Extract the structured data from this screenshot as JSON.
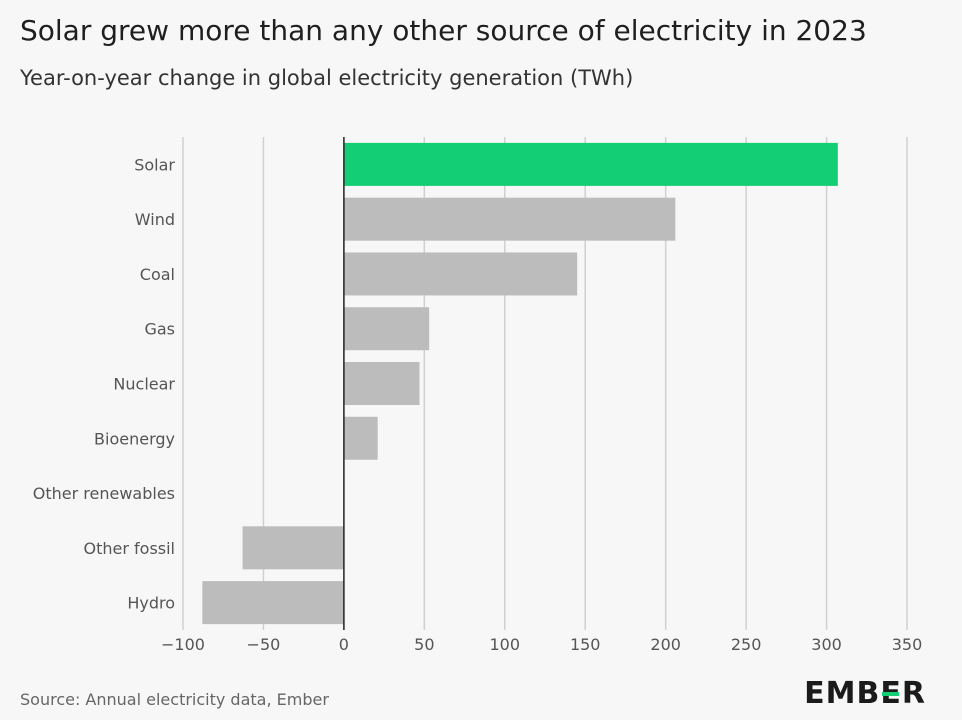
{
  "title": "Solar grew more than any other source of electricity in 2023",
  "subtitle": "Year-on-year change in global electricity generation (TWh)",
  "source": "Source: Annual electricity data, Ember",
  "logo": "EMBER",
  "colors": {
    "highlight": "#13ce74",
    "bar": "#bcbcbc",
    "grid": "#d0d0d0",
    "zero": "#222222",
    "background": "#f7f7f7"
  },
  "chart_data": {
    "type": "bar",
    "orientation": "horizontal",
    "title": "Solar grew more than any other source of electricity in 2023",
    "subtitle": "Year-on-year change in global electricity generation (TWh)",
    "categories": [
      "Solar",
      "Wind",
      "Coal",
      "Gas",
      "Nuclear",
      "Bioenergy",
      "Other renewables",
      "Other fossil",
      "Hydro"
    ],
    "values": [
      307,
      206,
      145,
      53,
      47,
      21,
      0,
      -63,
      -88
    ],
    "highlight": [
      "Solar"
    ],
    "xlim": [
      -100,
      350
    ],
    "xticks": [
      -100,
      -50,
      0,
      50,
      100,
      150,
      200,
      250,
      300,
      350
    ],
    "xtick_labels": [
      "−100",
      "−50",
      "0",
      "50",
      "100",
      "150",
      "200",
      "250",
      "300",
      "350"
    ],
    "grid": true,
    "legend": "none"
  }
}
